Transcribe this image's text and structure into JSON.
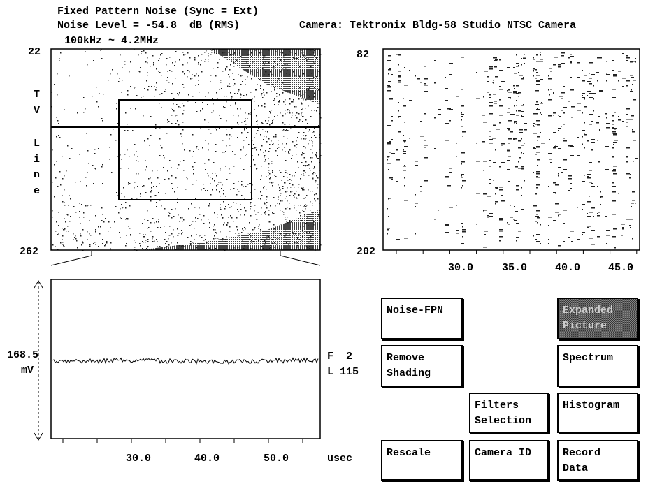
{
  "header": {
    "title": "Fixed Pattern Noise (Sync = Ext)",
    "noise_level": "Noise Level = -54.8  dB (RMS)",
    "camera": "Camera: Tektronix Bldg-58 Studio NTSC Camera",
    "band": "100kHz ~ 4.2MHz"
  },
  "left_image": {
    "top_label": "22",
    "bottom_label": "262",
    "axis_title": [
      "T",
      "V",
      "L",
      "i",
      "n",
      "e"
    ]
  },
  "right_image": {
    "top_label": "82",
    "bottom_label": "202",
    "x_ticks": [
      "30.0",
      "35.0",
      "40.0",
      "45.0"
    ]
  },
  "waveform": {
    "level": "168.5",
    "unit": "mV",
    "field": "F  2",
    "line": "L 115",
    "x_ticks": [
      "30.0",
      "40.0",
      "50.0"
    ],
    "x_unit": "usec"
  },
  "buttons": [
    "Noise-FPN",
    "Expanded Picture",
    "Remove Shading",
    "Spectrum",
    "Filters Selection",
    "Histogram",
    "Rescale",
    "Camera ID",
    "Record Data"
  ]
}
